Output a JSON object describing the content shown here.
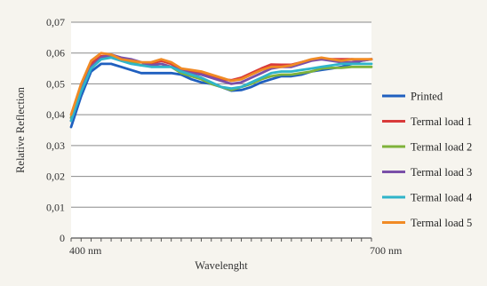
{
  "chart_data": {
    "type": "line",
    "title": "",
    "xlabel": "Wavelenght",
    "ylabel": "Relative Reflection",
    "x_range_nm": [
      400,
      700
    ],
    "x_tick_labels": [
      "400 nm",
      "700 nm"
    ],
    "y_tick_labels": [
      "0",
      "0,01",
      "0,02",
      "0,03",
      "0,04",
      "0,05",
      "0,06",
      "0,07"
    ],
    "ylim": [
      0,
      0.07
    ],
    "grid": "horizontal",
    "legend_position": "right",
    "x": [
      400,
      410,
      420,
      430,
      440,
      450,
      460,
      470,
      480,
      490,
      500,
      510,
      520,
      530,
      540,
      550,
      560,
      570,
      580,
      590,
      600,
      610,
      620,
      630,
      640,
      650,
      660,
      670,
      680,
      690,
      700
    ],
    "series": [
      {
        "name": "Printed",
        "color": "#1f5fbf",
        "values": [
          0.036,
          0.046,
          0.054,
          0.0565,
          0.0565,
          0.0555,
          0.0545,
          0.0535,
          0.0535,
          0.0535,
          0.0535,
          0.053,
          0.0515,
          0.0505,
          0.05,
          0.049,
          0.0478,
          0.048,
          0.049,
          0.0505,
          0.0515,
          0.0525,
          0.0525,
          0.053,
          0.054,
          0.0545,
          0.055,
          0.0555,
          0.0565,
          0.0575,
          0.058
        ]
      },
      {
        "name": "Termal load 1",
        "color": "#d93a3a",
        "values": [
          0.039,
          0.0495,
          0.0565,
          0.059,
          0.059,
          0.058,
          0.057,
          0.056,
          0.0565,
          0.0575,
          0.0565,
          0.0545,
          0.054,
          0.0535,
          0.0525,
          0.0515,
          0.0512,
          0.052,
          0.0535,
          0.055,
          0.0563,
          0.0562,
          0.0562,
          0.057,
          0.0578,
          0.058,
          0.058,
          0.058,
          0.058,
          0.0578,
          0.058
        ]
      },
      {
        "name": "Termal load 2",
        "color": "#7fb23a",
        "values": [
          0.039,
          0.048,
          0.0555,
          0.0585,
          0.059,
          0.058,
          0.057,
          0.056,
          0.056,
          0.0565,
          0.0555,
          0.0535,
          0.0525,
          0.0515,
          0.05,
          0.049,
          0.048,
          0.049,
          0.05,
          0.0515,
          0.0525,
          0.053,
          0.053,
          0.0535,
          0.054,
          0.055,
          0.0552,
          0.0552,
          0.0555,
          0.0555,
          0.0555
        ]
      },
      {
        "name": "Termal load 3",
        "color": "#7a4fa8",
        "values": [
          0.038,
          0.048,
          0.0555,
          0.0585,
          0.0595,
          0.0585,
          0.058,
          0.057,
          0.056,
          0.0565,
          0.0555,
          0.0545,
          0.0535,
          0.053,
          0.052,
          0.051,
          0.05,
          0.0505,
          0.052,
          0.0535,
          0.055,
          0.0555,
          0.0555,
          0.0565,
          0.0575,
          0.058,
          0.0575,
          0.057,
          0.057,
          0.0575,
          0.058
        ]
      },
      {
        "name": "Termal load 4",
        "color": "#2fb4c9",
        "values": [
          0.038,
          0.0475,
          0.055,
          0.058,
          0.0585,
          0.0575,
          0.0565,
          0.056,
          0.0555,
          0.0555,
          0.0555,
          0.054,
          0.053,
          0.052,
          0.0505,
          0.049,
          0.0485,
          0.049,
          0.0505,
          0.052,
          0.0535,
          0.054,
          0.054,
          0.0545,
          0.055,
          0.0555,
          0.056,
          0.0565,
          0.0565,
          0.0565,
          0.0565
        ]
      },
      {
        "name": "Termal load 5",
        "color": "#f08a24",
        "values": [
          0.04,
          0.05,
          0.0575,
          0.06,
          0.0595,
          0.058,
          0.0575,
          0.057,
          0.057,
          0.058,
          0.057,
          0.055,
          0.0545,
          0.054,
          0.053,
          0.052,
          0.051,
          0.0515,
          0.053,
          0.0545,
          0.0555,
          0.0555,
          0.056,
          0.057,
          0.058,
          0.0585,
          0.058,
          0.0575,
          0.058,
          0.058,
          0.058
        ]
      }
    ]
  }
}
